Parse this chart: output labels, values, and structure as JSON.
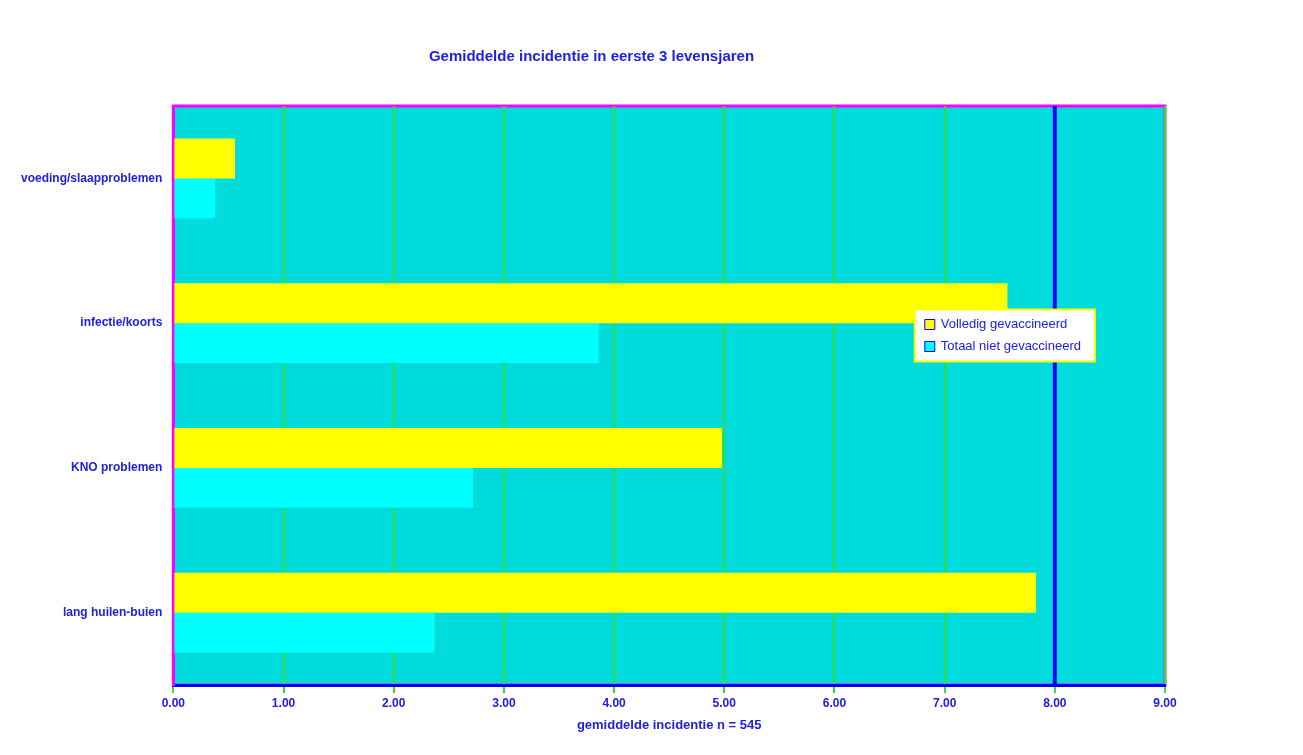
{
  "chart_data": {
    "type": "bar",
    "orientation": "horizontal",
    "title": "Gemiddelde incidentie in eerste 3 levensjaren",
    "xlabel": "gemiddelde incidentie n = 545",
    "categories": [
      "voeding/slaapproblemen",
      "infectie/koorts",
      "KNO problemen",
      "lang huilen-buien"
    ],
    "series": [
      {
        "name": "Volledig gevaccineerd",
        "color": "#ffff00",
        "values": [
          0.56,
          7.57,
          4.98,
          7.83
        ]
      },
      {
        "name": "Totaal niet gevaccineerd",
        "color": "#00ffff",
        "values": [
          0.38,
          3.86,
          2.72,
          2.37
        ]
      }
    ],
    "xlim": [
      0,
      9
    ],
    "xticks": [
      {
        "value": 0,
        "label": "0.00"
      },
      {
        "value": 1,
        "label": "1.00"
      },
      {
        "value": 2,
        "label": "2.00"
      },
      {
        "value": 3,
        "label": "3.00"
      },
      {
        "value": 4,
        "label": "4.00"
      },
      {
        "value": 5,
        "label": "5.00"
      },
      {
        "value": 6,
        "label": "6.00"
      },
      {
        "value": 7,
        "label": "7.00"
      },
      {
        "value": 8,
        "label": "8.00"
      },
      {
        "value": 9,
        "label": "9.00"
      }
    ],
    "ref_lines": [
      {
        "axis": "x",
        "value": 8,
        "color": "#0000ff"
      }
    ],
    "grid": "x",
    "legend": "right"
  }
}
